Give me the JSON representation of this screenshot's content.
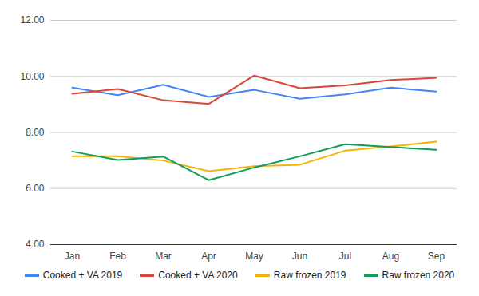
{
  "chart_data": {
    "type": "line",
    "categories": [
      "Jan",
      "Feb",
      "Mar",
      "Apr",
      "May",
      "Jun",
      "Jul",
      "Aug",
      "Sep"
    ],
    "series": [
      {
        "name": "Cooked + VA 2019",
        "color": "#4285F4",
        "values": [
          9.6,
          9.33,
          9.7,
          9.27,
          9.52,
          9.2,
          9.36,
          9.6,
          9.46
        ]
      },
      {
        "name": "Cooked + VA 2020",
        "color": "#DB4437",
        "values": [
          9.38,
          9.55,
          9.15,
          9.02,
          10.03,
          9.58,
          9.68,
          9.87,
          9.95
        ]
      },
      {
        "name": "Raw frozen 2019",
        "color": "#F4B400",
        "values": [
          7.15,
          7.15,
          7.0,
          6.62,
          6.8,
          6.85,
          7.35,
          7.5,
          7.67
        ]
      },
      {
        "name": "Raw frozen 2020",
        "color": "#0F9D58",
        "values": [
          7.32,
          7.02,
          7.14,
          6.3,
          6.75,
          7.15,
          7.58,
          7.48,
          7.38
        ]
      }
    ],
    "ylim": [
      4,
      12
    ],
    "yticks": [
      {
        "value": 4,
        "label": "4.00"
      },
      {
        "value": 6,
        "label": "6.00"
      },
      {
        "value": 8,
        "label": "8.00"
      },
      {
        "value": 10,
        "label": "10.00"
      },
      {
        "value": 12,
        "label": "12.00"
      }
    ],
    "grid": true,
    "legend": "bottom"
  }
}
